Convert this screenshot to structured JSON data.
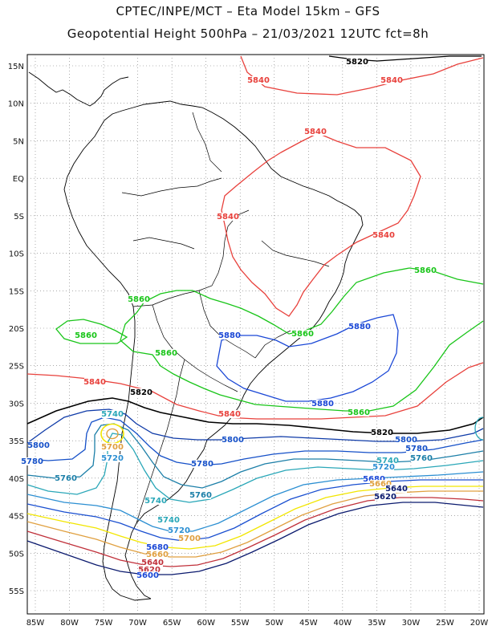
{
  "header": {
    "line1": "CPTEC/INPE/MCT –  Eta Model 15km – GFS",
    "line2": "Geopotential Height 500hPa – 21/03/2021 12UTC fct=8h"
  },
  "axes": {
    "lat_labels": [
      "15N",
      "10N",
      "5N",
      "EQ",
      "5S",
      "10S",
      "15S",
      "20S",
      "25S",
      "30S",
      "35S",
      "40S",
      "45S",
      "50S",
      "55S"
    ],
    "lon_labels": [
      "85W",
      "80W",
      "75W",
      "70W",
      "65W",
      "60W",
      "55W",
      "50W",
      "45W",
      "40W",
      "35W",
      "30W",
      "25W",
      "20W"
    ],
    "lat_values": [
      15,
      10,
      5,
      0,
      -5,
      -10,
      -15,
      -20,
      -25,
      -30,
      -35,
      -40,
      -45,
      -50,
      -55
    ],
    "lon_values": [
      -85,
      -80,
      -75,
      -70,
      -65,
      -60,
      -55,
      -50,
      -45,
      -40,
      -35,
      -30,
      -25,
      -20
    ],
    "grid": "dotted"
  },
  "colors": {
    "c5620": "#000000",
    "c5640": "#e8413c",
    "c5660": "#19c519",
    "c5680": "#1a47d6",
    "c5700": "#1a4fd0",
    "c5720": "#2c8fd2",
    "c5740": "#2aa7b8",
    "c5760": "#1c7fa8",
    "c5780": "#1550c8",
    "yellow": "#f2e600",
    "orange": "#e0a040",
    "darkred": "#c0303a",
    "navy": "#0b1a6e",
    "coast": "#000000"
  },
  "contours": {
    "labels": [
      {
        "id": "l5820a",
        "text": "5820"
      },
      {
        "id": "l5840a",
        "text": "5840"
      },
      {
        "id": "l5840b",
        "text": "5840"
      },
      {
        "id": "l5840c",
        "text": "5840"
      },
      {
        "id": "l5840d",
        "text": "5840"
      },
      {
        "id": "l5840e",
        "text": "5840"
      },
      {
        "id": "l5860a",
        "text": "5860"
      },
      {
        "id": "l5860b",
        "text": "5860"
      },
      {
        "id": "l5860c",
        "text": "5860"
      },
      {
        "id": "l5860d",
        "text": "5860"
      },
      {
        "id": "l5860e",
        "text": "5860"
      },
      {
        "id": "l5860f",
        "text": "5860"
      },
      {
        "id": "l5880a",
        "text": "5880"
      },
      {
        "id": "l5880b",
        "text": "5880"
      },
      {
        "id": "l5880c",
        "text": "5880"
      },
      {
        "id": "l5840f",
        "text": "5840"
      },
      {
        "id": "l5840g",
        "text": "5840"
      },
      {
        "id": "l5820b",
        "text": "5820"
      },
      {
        "id": "l5820c",
        "text": "5820"
      },
      {
        "id": "l5800a",
        "text": "5800"
      },
      {
        "id": "l5800b",
        "text": "5800"
      },
      {
        "id": "l5800c",
        "text": "5800"
      },
      {
        "id": "l5780a",
        "text": "5780"
      },
      {
        "id": "l5780b",
        "text": "5780"
      },
      {
        "id": "l5780c",
        "text": "5780"
      },
      {
        "id": "l5760a",
        "text": "5760"
      },
      {
        "id": "l5760b",
        "text": "5760"
      },
      {
        "id": "l5760c",
        "text": "5760"
      },
      {
        "id": "l5740a",
        "text": "5740"
      },
      {
        "id": "l5740b",
        "text": "5740"
      },
      {
        "id": "l5740c",
        "text": "5740"
      },
      {
        "id": "l5740d",
        "text": "5740"
      },
      {
        "id": "l5720a",
        "text": "5720"
      },
      {
        "id": "l5720b",
        "text": "5720"
      },
      {
        "id": "l5720c",
        "text": "5720"
      },
      {
        "id": "l5700a",
        "text": "5700"
      },
      {
        "id": "l5700b",
        "text": "5700"
      },
      {
        "id": "l5680a",
        "text": "5680"
      },
      {
        "id": "l5660a",
        "text": "5660"
      },
      {
        "id": "l5640a",
        "text": "5640"
      },
      {
        "id": "l5620a",
        "text": "5620"
      },
      {
        "id": "l5600a",
        "text": "5600"
      },
      {
        "id": "l5680b",
        "text": "5680"
      },
      {
        "id": "l5660b",
        "text": "5660"
      },
      {
        "id": "l5640b",
        "text": "5640"
      },
      {
        "id": "l5620b",
        "text": "5620"
      }
    ]
  }
}
